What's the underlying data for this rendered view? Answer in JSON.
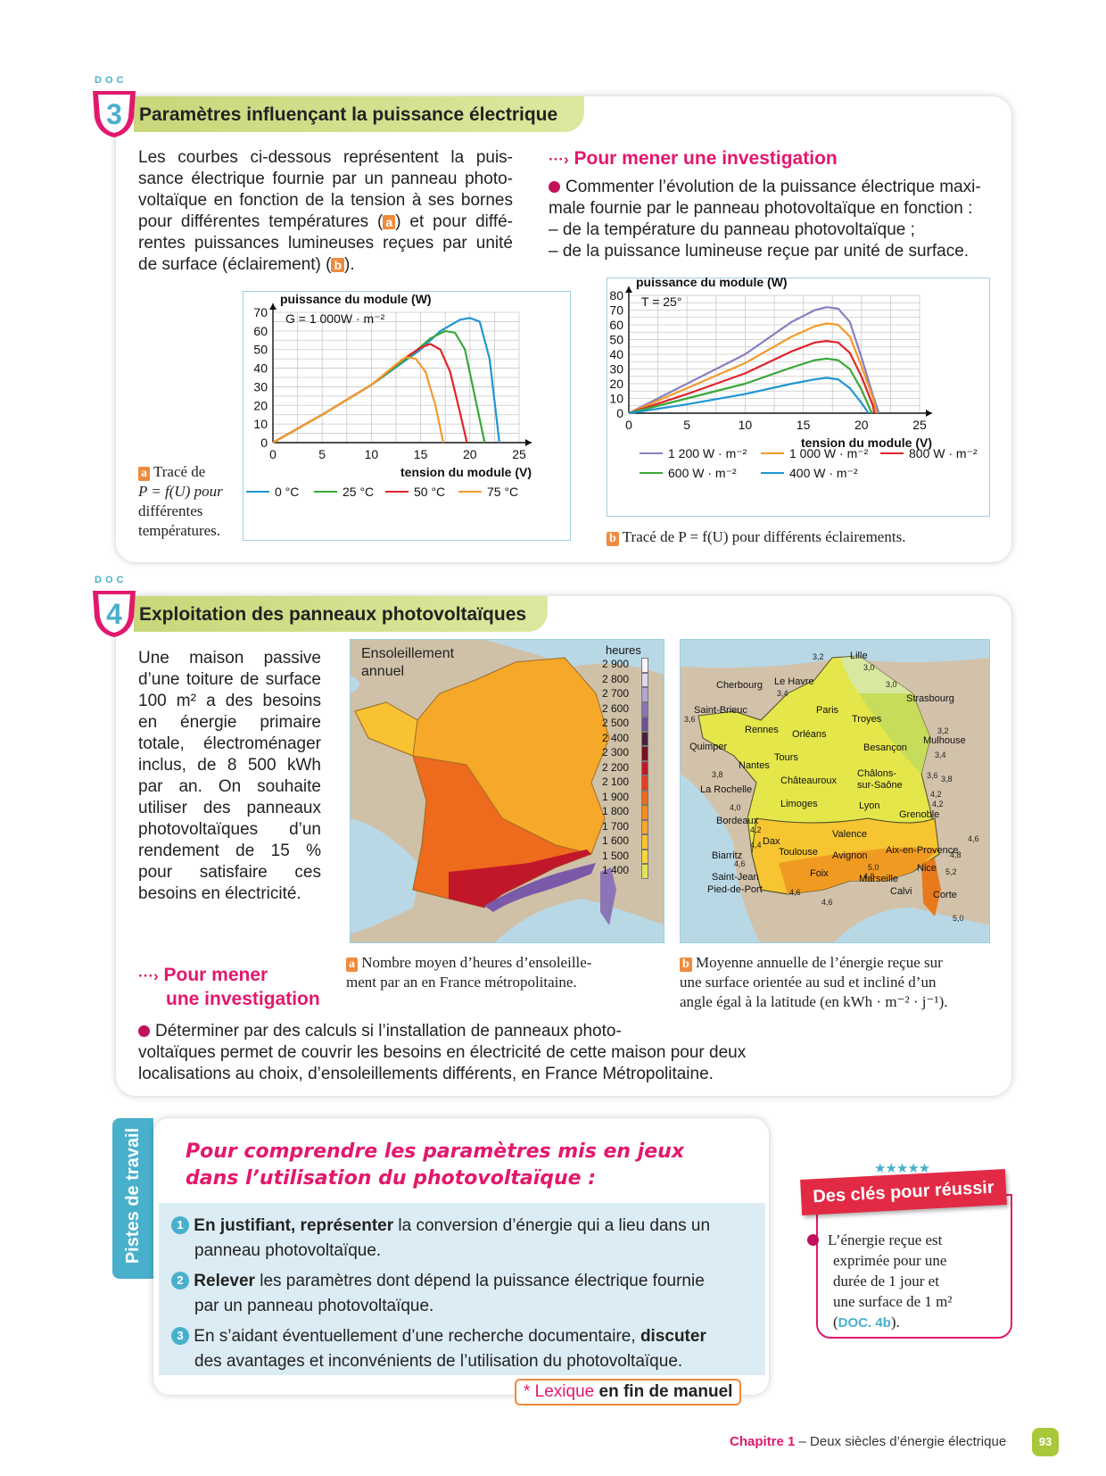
{
  "doc3": {
    "label": "DOC",
    "number": "3",
    "title": "Paramètres influençant la puissance électrique",
    "intro": "Les courbes ci-dessous représentent la puissance électrique fournie par un panneau photovoltaïque en fonction de la tension à ses bornes pour différentes températures (a) et pour différentes puissances lumineuses reçues par unité de surface (éclairement) (b).",
    "intro_lines": [
      "Les courbes ci-dessous représentent la puis-",
      "sance électrique fournie par un panneau photo-",
      "voltaïque en fonction de la tension à ses bornes",
      "pour différentes températures (",
      ") et pour diffé-",
      "rentes puissances lumineuses reçues par unité",
      "de surface (éclairement) ("
    ],
    "investigation_title": "Pour mener une investigation",
    "investigation_arrow": "···›",
    "investigation_lines": [
      "Commenter l’évolution de la puissance électrique maxi-",
      "male fournie par le panneau photovoltaïque en fonction :",
      "– de la température du panneau photovoltaïque ;",
      "– de la puissance lumineuse reçue par unité de surface."
    ],
    "caption_a_letter": "a",
    "caption_a_lines": [
      "Tracé de",
      "P = f(U) pour",
      "différentes",
      "températures."
    ],
    "caption_b_letter": "b",
    "caption_b": "Tracé de P = f(U) pour différents éclairements."
  },
  "doc4": {
    "label": "DOC",
    "number": "4",
    "title": "Exploitation des panneaux photovoltaïques",
    "intro_lines": [
      "Une maison passive",
      "d’une toiture de surface",
      "100 m² a des besoins",
      "en énergie primaire",
      "totale, électroménager",
      "inclus, de 8 500 kWh",
      "par an. On souhaite",
      "utiliser des panneaux",
      "photovoltaïques d’un",
      "rendement de 15 %",
      "pour satisfaire ces",
      "besoins en électricité."
    ],
    "investigation_title_1": "Pour mener",
    "investigation_title_2": "une investigation",
    "investigation_arrow": "···›",
    "investigation_lines": [
      "Déterminer par des calculs si l’installation de panneaux photo-",
      "voltaïques permet de couvrir les besoins en électricité de cette maison pour deux",
      "localisations au choix, d’ensoleillements différents, en France Métropolitaine."
    ],
    "map_a": {
      "title_1": "Ensoleillement",
      "title_2": "annuel",
      "legend_title": "heures",
      "legend": [
        "2 900",
        "2 800",
        "2 700",
        "2 600",
        "2 500",
        "2 400",
        "2 300",
        "2 200",
        "2 100",
        "1 900",
        "1 800",
        "1 700",
        "1 600",
        "1 500",
        "1 400"
      ],
      "legend_colors": [
        "#fff4f8",
        "#ddd6ec",
        "#b6a6d2",
        "#8c75b6",
        "#6d4f9a",
        "#4d1f3f",
        "#7a1020",
        "#c0182a",
        "#e53c1f",
        "#ee6a1c",
        "#f38c1e",
        "#f6a928",
        "#f8c232",
        "#f7d63c",
        "#e3e455"
      ]
    },
    "caption_a_letter": "a",
    "caption_a_lines": [
      "Nombre moyen d’heures d’ensoleille-",
      "ment par an en France métropolitaine."
    ],
    "map_b": {
      "cities": [
        "Lille",
        "Cherbourg",
        "Le Havre",
        "Strasbourg",
        "Saint-Brieuc",
        "Paris",
        "Troyes",
        "Rennes",
        "Orléans",
        "Mulhouse",
        "Quimper",
        "Besançon",
        "Tours",
        "Nantes",
        "Châteauroux",
        "Châlons-",
        "sur-Saône",
        "La Rochelle",
        "Limoges",
        "Lyon",
        "Grenoble",
        "Bordeaux",
        "Valence",
        "Dax",
        "Toulouse",
        "Avignon",
        "Aix-en-Provence",
        "Biarritz",
        "Nice",
        "Foix",
        "Marseille",
        "Saint-Jean",
        "Pied-de-Port",
        "Calvi",
        "Corte"
      ],
      "isolines": [
        "3,2",
        "3,0",
        "3,0",
        "3,4",
        "3,6",
        "3,2",
        "3,4",
        "3,8",
        "3,6",
        "3,8",
        "4,2",
        "4,2",
        "4,0",
        "4,2",
        "4,4",
        "4,6",
        "4,6",
        "4,8",
        "5,0",
        "4,8",
        "5,2",
        "4,6",
        "4,6",
        "5,0"
      ]
    },
    "caption_b_letter": "b",
    "caption_b_lines": [
      "Moyenne annuelle de l’énergie reçue sur",
      "une surface orientée au sud et incliné d’un",
      "angle égal à la latitude (en kWh · m⁻² · j⁻¹)."
    ]
  },
  "pistes": {
    "side_label": "Pistes de travail",
    "heading_1": "Pour comprendre les paramètres mis en jeux",
    "heading_2": "dans l’utilisation du photovoltaïque :",
    "items": [
      {
        "num": "1",
        "bold": "En justifiant, représenter",
        "rest": " la conversion d’énergie qui a lieu dans un",
        "line2": "panneau photovoltaïque."
      },
      {
        "num": "2",
        "bold": "Relever",
        "rest": " les paramètres dont dépend la puissance électrique fournie",
        "line2": "par un panneau photovoltaïque."
      },
      {
        "num": "3",
        "bold": "",
        "rest": "En s’aidant éventuellement d’une recherche documentaire, ",
        "bold2": "discuter",
        "line2": "des avantages et inconvénients de l’utilisation du photovoltaïque."
      }
    ],
    "lexique_star": "* Lexique",
    "lexique_rest": " en fin de manuel"
  },
  "cles": {
    "title": "Des clés pour réussir",
    "lines": [
      "L’énergie reçue est",
      "exprimée pour une",
      "durée de 1 jour et",
      "une surface de 1 m²"
    ],
    "ref": "DOC. 4b"
  },
  "footer": {
    "chapter": "Chapitre 1",
    "title": " – Deux siècles d’énergie électrique",
    "page": "93"
  },
  "chart_data": [
    {
      "type": "line",
      "ylabel": "puissance du module (W)",
      "xlabel": "tension du module (V)",
      "annotation": "G = 1 000W · m⁻²",
      "xlim": [
        0,
        25
      ],
      "ylim": [
        0,
        70
      ],
      "x_ticks": [
        "0",
        "5",
        "10",
        "15",
        "20",
        "25"
      ],
      "y_ticks": [
        "0",
        "10",
        "20",
        "30",
        "40",
        "50",
        "60",
        "70"
      ],
      "series": [
        {
          "name": "0 °C",
          "color": "#1e96d3",
          "points": [
            [
              0,
              0
            ],
            [
              5,
              15
            ],
            [
              10,
              31
            ],
            [
              15,
              50
            ],
            [
              17,
              60
            ],
            [
              19,
              66
            ],
            [
              20,
              67
            ],
            [
              21,
              65
            ],
            [
              22,
              45
            ],
            [
              23,
              0
            ]
          ]
        },
        {
          "name": "25 °C",
          "color": "#3aa83a",
          "points": [
            [
              0,
              0
            ],
            [
              5,
              15
            ],
            [
              10,
              31
            ],
            [
              14,
              47
            ],
            [
              16,
              56
            ],
            [
              17.5,
              60
            ],
            [
              18.5,
              59
            ],
            [
              19.5,
              50
            ],
            [
              20.5,
              25
            ],
            [
              21.5,
              0
            ]
          ]
        },
        {
          "name": "50 °C",
          "color": "#e0242a",
          "points": [
            [
              0,
              0
            ],
            [
              5,
              15
            ],
            [
              10,
              31
            ],
            [
              13,
              44
            ],
            [
              15,
              51
            ],
            [
              16,
              53
            ],
            [
              17,
              50
            ],
            [
              18,
              38
            ],
            [
              19,
              16
            ],
            [
              19.7,
              0
            ]
          ]
        },
        {
          "name": "75 °C",
          "color": "#f49a2a",
          "points": [
            [
              0,
              0
            ],
            [
              5,
              15
            ],
            [
              10,
              31
            ],
            [
              12.5,
              42
            ],
            [
              13.5,
              46
            ],
            [
              14.5,
              45
            ],
            [
              15.5,
              38
            ],
            [
              16.5,
              20
            ],
            [
              17.3,
              0
            ]
          ]
        }
      ]
    },
    {
      "type": "line",
      "ylabel": "puissance du module (W)",
      "xlabel": "tension du module (V)",
      "annotation": "T = 25°",
      "xlim": [
        0,
        25
      ],
      "ylim": [
        0,
        80
      ],
      "x_ticks": [
        "0",
        "5",
        "10",
        "15",
        "20",
        "25"
      ],
      "y_ticks": [
        "0",
        "10",
        "20",
        "30",
        "40",
        "50",
        "60",
        "70",
        "80"
      ],
      "series": [
        {
          "name": "1 200 W · m⁻²",
          "color": "#8a7ec0",
          "points": [
            [
              0,
              0
            ],
            [
              5,
              20
            ],
            [
              10,
              40
            ],
            [
              14,
              62
            ],
            [
              16,
              70
            ],
            [
              17,
              72
            ],
            [
              18,
              71
            ],
            [
              19,
              62
            ],
            [
              20,
              38
            ],
            [
              21,
              12
            ],
            [
              21.5,
              0
            ]
          ]
        },
        {
          "name": "1 000 W · m⁻²",
          "color": "#f49a2a",
          "points": [
            [
              0,
              0
            ],
            [
              5,
              17
            ],
            [
              10,
              34
            ],
            [
              14,
              52
            ],
            [
              16,
              59
            ],
            [
              17,
              61
            ],
            [
              18,
              60
            ],
            [
              19,
              52
            ],
            [
              20,
              32
            ],
            [
              21,
              10
            ],
            [
              21.3,
              0
            ]
          ]
        },
        {
          "name": "800 W · m⁻²",
          "color": "#e0242a",
          "points": [
            [
              0,
              0
            ],
            [
              5,
              13
            ],
            [
              10,
              27
            ],
            [
              14,
              42
            ],
            [
              16,
              48
            ],
            [
              17,
              49
            ],
            [
              18,
              48
            ],
            [
              19,
              41
            ],
            [
              20,
              25
            ],
            [
              21,
              5
            ],
            [
              21.1,
              0
            ]
          ]
        },
        {
          "name": "600 W · m⁻²",
          "color": "#3aa83a",
          "points": [
            [
              0,
              0
            ],
            [
              5,
              10
            ],
            [
              10,
              20
            ],
            [
              14,
              31
            ],
            [
              16,
              36
            ],
            [
              17,
              37
            ],
            [
              18,
              36
            ],
            [
              19,
              30
            ],
            [
              20,
              16
            ],
            [
              20.9,
              0
            ]
          ]
        },
        {
          "name": "400 W · m⁻²",
          "color": "#1e96d3",
          "points": [
            [
              0,
              0
            ],
            [
              5,
              6
            ],
            [
              10,
              13
            ],
            [
              14,
              20
            ],
            [
              16,
              23
            ],
            [
              17,
              24
            ],
            [
              18,
              23
            ],
            [
              19,
              17
            ],
            [
              20,
              7
            ],
            [
              20.6,
              0
            ]
          ]
        }
      ]
    }
  ]
}
